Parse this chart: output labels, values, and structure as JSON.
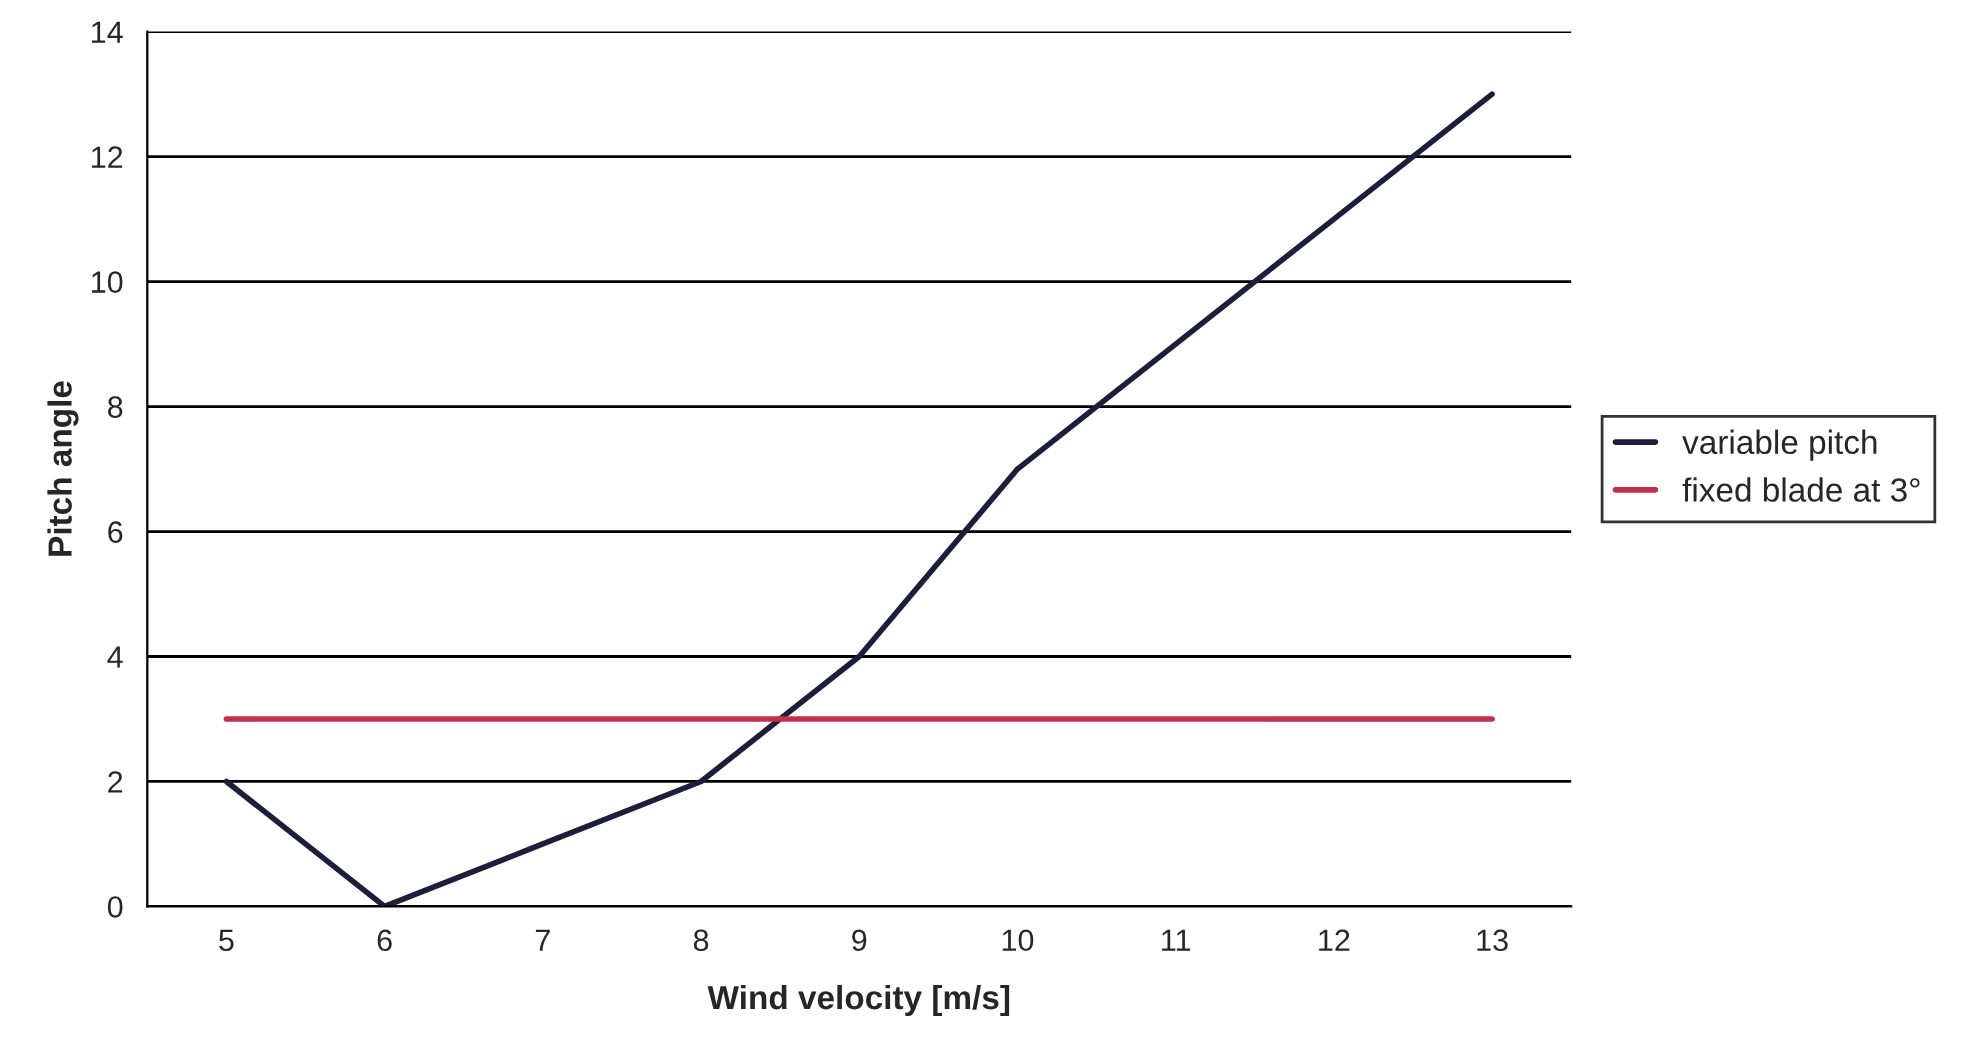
{
  "chart_data": {
    "type": "line",
    "xlabel": "Wind velocity [m/s]",
    "ylabel": "Pitch angle",
    "categories": [
      "5",
      "6",
      "7",
      "8",
      "9",
      "10",
      "11",
      "12",
      "13"
    ],
    "series": [
      {
        "name": "variable pitch",
        "color": "#1c1f3a",
        "values": [
          2,
          0,
          1,
          2,
          4,
          7,
          9,
          11,
          13
        ]
      },
      {
        "name": "fixed blade at 3°",
        "color": "#c4304c",
        "values": [
          3,
          3,
          3,
          3,
          3,
          3,
          3,
          3,
          3
        ]
      }
    ],
    "ylim": [
      0,
      14
    ],
    "yticks": [
      0,
      2,
      4,
      6,
      8,
      10,
      12,
      14
    ],
    "grid": "y",
    "legend": "right",
    "marker": "none",
    "line_style": "solid"
  }
}
